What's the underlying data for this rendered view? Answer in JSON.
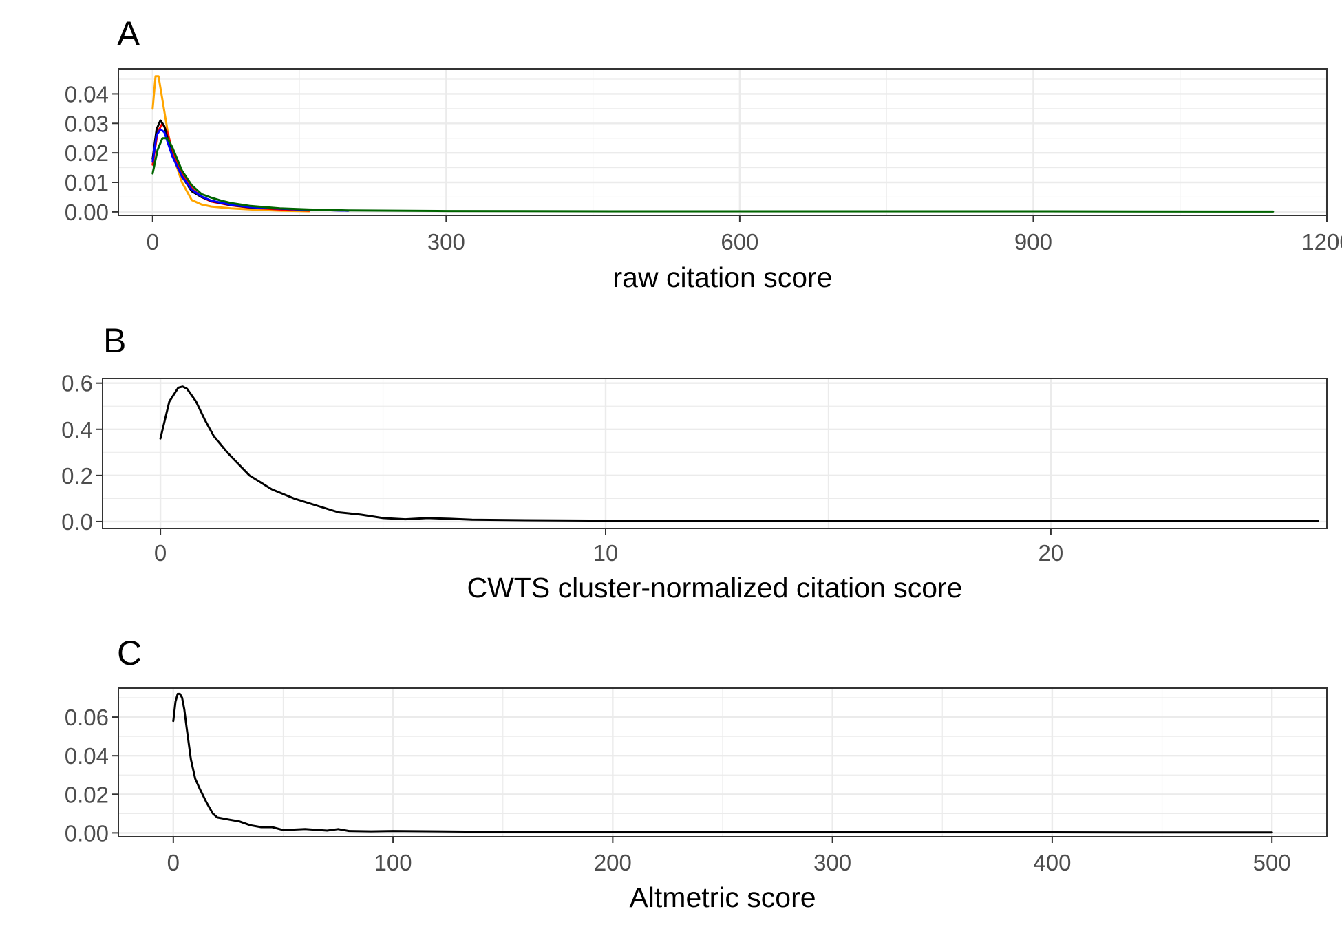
{
  "chart_data": [
    {
      "type": "line",
      "tag": "A",
      "title": "",
      "xlabel": "raw citation score",
      "ylabel": "",
      "xlim": [
        -35,
        1200
      ],
      "ylim": [
        -0.0012,
        0.0485
      ],
      "xticks": [
        0,
        300,
        600,
        900,
        1200
      ],
      "xtick_labels": [
        "0",
        "300",
        "600",
        "900",
        "1200"
      ],
      "yticks": [
        0.0,
        0.01,
        0.02,
        0.03,
        0.04
      ],
      "ytick_labels": [
        "0.00",
        "0.01",
        "0.02",
        "0.03",
        "0.04"
      ],
      "grid": true,
      "legend": "none",
      "series": [
        {
          "color": "#ffa500",
          "x": [
            0,
            3,
            6,
            10,
            15,
            20,
            30,
            40,
            50,
            60,
            80,
            100,
            130,
            160
          ],
          "y": [
            0.035,
            0.046,
            0.046,
            0.038,
            0.028,
            0.02,
            0.01,
            0.004,
            0.0025,
            0.0018,
            0.0012,
            0.0008,
            0.0004,
            0.0002
          ]
        },
        {
          "color": "#ff0000",
          "x": [
            0,
            5,
            10,
            15,
            20,
            30,
            40,
            50,
            60,
            80,
            100,
            130,
            160
          ],
          "y": [
            0.016,
            0.027,
            0.03,
            0.027,
            0.021,
            0.013,
            0.008,
            0.005,
            0.0035,
            0.0022,
            0.0014,
            0.0008,
            0.0004
          ]
        },
        {
          "color": "#000000",
          "x": [
            0,
            4,
            8,
            12,
            16,
            20,
            30,
            40,
            50,
            60,
            80,
            100,
            150,
            200
          ],
          "y": [
            0.018,
            0.028,
            0.031,
            0.029,
            0.024,
            0.019,
            0.012,
            0.007,
            0.005,
            0.0037,
            0.0023,
            0.0015,
            0.0008,
            0.0004
          ]
        },
        {
          "color": "#0000ff",
          "x": [
            0,
            4,
            8,
            12,
            16,
            20,
            30,
            40,
            50,
            60,
            80,
            100,
            150,
            200
          ],
          "y": [
            0.017,
            0.026,
            0.028,
            0.027,
            0.023,
            0.019,
            0.012,
            0.0075,
            0.0052,
            0.0038,
            0.0024,
            0.0016,
            0.0008,
            0.0004
          ]
        },
        {
          "color": "#006400",
          "x": [
            0,
            5,
            10,
            15,
            20,
            25,
            30,
            40,
            50,
            60,
            70,
            80,
            100,
            130,
            160,
            200,
            300,
            500,
            700,
            900,
            1100,
            1145
          ],
          "y": [
            0.013,
            0.021,
            0.025,
            0.025,
            0.022,
            0.018,
            0.014,
            0.009,
            0.006,
            0.0048,
            0.0038,
            0.003,
            0.002,
            0.0012,
            0.0008,
            0.0005,
            0.0003,
            0.0002,
            0.0002,
            0.0002,
            0.0001,
            0.0001
          ]
        }
      ]
    },
    {
      "type": "line",
      "tag": "B",
      "title": "",
      "xlabel": "CWTS cluster-normalized citation score",
      "ylabel": "",
      "xlim": [
        -1.3,
        26.2
      ],
      "ylim": [
        -0.03,
        0.62
      ],
      "xticks": [
        0,
        10,
        20
      ],
      "xtick_labels": [
        "0",
        "10",
        "20"
      ],
      "yticks": [
        0.0,
        0.2,
        0.4,
        0.6
      ],
      "ytick_labels": [
        "0.0",
        "0.2",
        "0.4",
        "0.6"
      ],
      "grid": true,
      "legend": "none",
      "series": [
        {
          "color": "#000000",
          "x": [
            0,
            0.2,
            0.4,
            0.5,
            0.6,
            0.8,
            1.0,
            1.2,
            1.5,
            2.0,
            2.5,
            3.0,
            3.5,
            4.0,
            4.5,
            5.0,
            5.5,
            6.0,
            6.5,
            7,
            8,
            10,
            12,
            15,
            18,
            19,
            20,
            22,
            24,
            25,
            26
          ],
          "y": [
            0.36,
            0.52,
            0.58,
            0.585,
            0.575,
            0.52,
            0.44,
            0.37,
            0.3,
            0.2,
            0.14,
            0.1,
            0.07,
            0.04,
            0.03,
            0.015,
            0.01,
            0.015,
            0.012,
            0.008,
            0.006,
            0.004,
            0.004,
            0.002,
            0.002,
            0.004,
            0.002,
            0.002,
            0.002,
            0.004,
            0.002
          ]
        }
      ]
    },
    {
      "type": "line",
      "tag": "C",
      "title": "",
      "xlabel": "Altmetric score",
      "ylabel": "",
      "xlim": [
        -25,
        525
      ],
      "ylim": [
        -0.002,
        0.075
      ],
      "xticks": [
        0,
        100,
        200,
        300,
        400,
        500
      ],
      "xtick_labels": [
        "0",
        "100",
        "200",
        "300",
        "400",
        "500"
      ],
      "yticks": [
        0.0,
        0.02,
        0.04,
        0.06
      ],
      "ytick_labels": [
        "0.00",
        "0.02",
        "0.04",
        "0.06"
      ],
      "grid": true,
      "legend": "none",
      "series": [
        {
          "color": "#000000",
          "x": [
            0,
            1,
            2,
            3,
            4,
            5,
            6,
            8,
            10,
            12,
            15,
            18,
            20,
            25,
            30,
            35,
            40,
            45,
            50,
            60,
            70,
            75,
            80,
            90,
            100,
            120,
            150,
            200,
            250,
            300,
            350,
            400,
            450,
            500
          ],
          "y": [
            0.058,
            0.068,
            0.072,
            0.072,
            0.07,
            0.064,
            0.055,
            0.038,
            0.028,
            0.023,
            0.016,
            0.01,
            0.008,
            0.007,
            0.006,
            0.004,
            0.003,
            0.003,
            0.0015,
            0.002,
            0.0012,
            0.002,
            0.001,
            0.0008,
            0.001,
            0.0008,
            0.0005,
            0.0004,
            0.0003,
            0.0004,
            0.0003,
            0.0003,
            0.0002,
            0.0002
          ]
        }
      ]
    }
  ]
}
